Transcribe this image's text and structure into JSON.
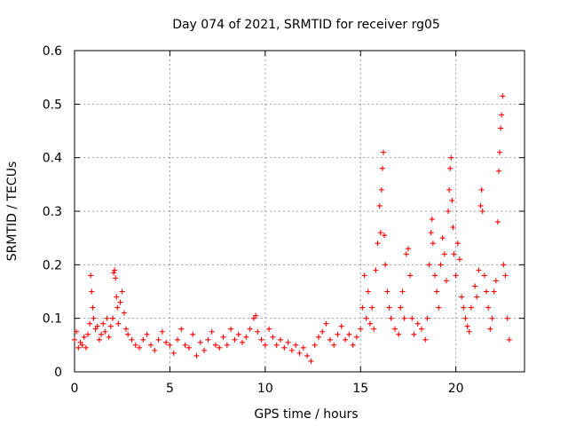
{
  "chart_data": {
    "type": "scatter",
    "title": "Day 074 of 2021, SRMTID for receiver rg05",
    "xlabel": "GPS time / hours",
    "ylabel": "SRMTID / TECUs",
    "xlim": [
      0,
      23.6
    ],
    "ylim": [
      0,
      0.6
    ],
    "x_ticks": [
      0,
      5,
      10,
      15,
      20
    ],
    "x_tick_labels": [
      "0",
      "5",
      "10",
      "15",
      "20"
    ],
    "y_ticks": [
      0,
      0.1,
      0.2,
      0.3,
      0.4,
      0.5,
      0.6
    ],
    "y_tick_labels": [
      "0",
      "0.1",
      "0.2",
      "0.3",
      "0.4",
      "0.5",
      "0.6"
    ],
    "grid": true,
    "marker": "+",
    "color": "#ff0000",
    "series": [
      {
        "name": "rg05",
        "points": [
          [
            0.0,
            0.06
          ],
          [
            0.1,
            0.075
          ],
          [
            0.2,
            0.045
          ],
          [
            0.3,
            0.055
          ],
          [
            0.4,
            0.05
          ],
          [
            0.5,
            0.065
          ],
          [
            0.6,
            0.045
          ],
          [
            0.7,
            0.07
          ],
          [
            0.8,
            0.09
          ],
          [
            0.85,
            0.18
          ],
          [
            0.9,
            0.15
          ],
          [
            0.95,
            0.12
          ],
          [
            1.0,
            0.1
          ],
          [
            1.1,
            0.08
          ],
          [
            1.2,
            0.085
          ],
          [
            1.3,
            0.06
          ],
          [
            1.4,
            0.07
          ],
          [
            1.5,
            0.09
          ],
          [
            1.6,
            0.075
          ],
          [
            1.7,
            0.1
          ],
          [
            1.8,
            0.065
          ],
          [
            1.9,
            0.085
          ],
          [
            2.0,
            0.1
          ],
          [
            2.05,
            0.185
          ],
          [
            2.1,
            0.19
          ],
          [
            2.15,
            0.175
          ],
          [
            2.2,
            0.14
          ],
          [
            2.25,
            0.12
          ],
          [
            2.3,
            0.09
          ],
          [
            2.4,
            0.13
          ],
          [
            2.5,
            0.15
          ],
          [
            2.6,
            0.11
          ],
          [
            2.7,
            0.08
          ],
          [
            2.8,
            0.07
          ],
          [
            3.0,
            0.06
          ],
          [
            3.2,
            0.05
          ],
          [
            3.4,
            0.045
          ],
          [
            3.6,
            0.06
          ],
          [
            3.8,
            0.07
          ],
          [
            4.0,
            0.05
          ],
          [
            4.2,
            0.04
          ],
          [
            4.4,
            0.06
          ],
          [
            4.6,
            0.075
          ],
          [
            4.8,
            0.055
          ],
          [
            5.0,
            0.05
          ],
          [
            5.2,
            0.035
          ],
          [
            5.4,
            0.06
          ],
          [
            5.6,
            0.08
          ],
          [
            5.8,
            0.05
          ],
          [
            6.0,
            0.045
          ],
          [
            6.2,
            0.07
          ],
          [
            6.4,
            0.03
          ],
          [
            6.6,
            0.055
          ],
          [
            6.8,
            0.04
          ],
          [
            7.0,
            0.06
          ],
          [
            7.2,
            0.075
          ],
          [
            7.4,
            0.05
          ],
          [
            7.6,
            0.045
          ],
          [
            7.8,
            0.065
          ],
          [
            8.0,
            0.05
          ],
          [
            8.2,
            0.08
          ],
          [
            8.4,
            0.06
          ],
          [
            8.6,
            0.07
          ],
          [
            8.8,
            0.055
          ],
          [
            9.0,
            0.065
          ],
          [
            9.2,
            0.08
          ],
          [
            9.4,
            0.1
          ],
          [
            9.5,
            0.105
          ],
          [
            9.6,
            0.075
          ],
          [
            9.8,
            0.06
          ],
          [
            10.0,
            0.05
          ],
          [
            10.2,
            0.08
          ],
          [
            10.4,
            0.065
          ],
          [
            10.6,
            0.05
          ],
          [
            10.8,
            0.06
          ],
          [
            11.0,
            0.045
          ],
          [
            11.2,
            0.055
          ],
          [
            11.4,
            0.04
          ],
          [
            11.6,
            0.05
          ],
          [
            11.8,
            0.035
          ],
          [
            12.0,
            0.045
          ],
          [
            12.2,
            0.03
          ],
          [
            12.4,
            0.02
          ],
          [
            12.6,
            0.05
          ],
          [
            12.8,
            0.065
          ],
          [
            13.0,
            0.075
          ],
          [
            13.2,
            0.09
          ],
          [
            13.4,
            0.06
          ],
          [
            13.6,
            0.05
          ],
          [
            13.8,
            0.07
          ],
          [
            14.0,
            0.085
          ],
          [
            14.2,
            0.06
          ],
          [
            14.4,
            0.07
          ],
          [
            14.6,
            0.05
          ],
          [
            14.8,
            0.065
          ],
          [
            15.0,
            0.08
          ],
          [
            15.1,
            0.12
          ],
          [
            15.2,
            0.18
          ],
          [
            15.3,
            0.1
          ],
          [
            15.4,
            0.15
          ],
          [
            15.5,
            0.09
          ],
          [
            15.6,
            0.12
          ],
          [
            15.7,
            0.08
          ],
          [
            15.8,
            0.19
          ],
          [
            15.9,
            0.24
          ],
          [
            16.0,
            0.31
          ],
          [
            16.05,
            0.26
          ],
          [
            16.1,
            0.34
          ],
          [
            16.15,
            0.38
          ],
          [
            16.2,
            0.41
          ],
          [
            16.25,
            0.255
          ],
          [
            16.3,
            0.2
          ],
          [
            16.4,
            0.15
          ],
          [
            16.5,
            0.12
          ],
          [
            16.6,
            0.1
          ],
          [
            16.8,
            0.08
          ],
          [
            17.0,
            0.07
          ],
          [
            17.1,
            0.12
          ],
          [
            17.2,
            0.15
          ],
          [
            17.3,
            0.1
          ],
          [
            17.4,
            0.22
          ],
          [
            17.5,
            0.23
          ],
          [
            17.6,
            0.18
          ],
          [
            17.7,
            0.1
          ],
          [
            17.8,
            0.07
          ],
          [
            18.0,
            0.09
          ],
          [
            18.2,
            0.08
          ],
          [
            18.4,
            0.06
          ],
          [
            18.5,
            0.1
          ],
          [
            18.6,
            0.2
          ],
          [
            18.7,
            0.26
          ],
          [
            18.75,
            0.285
          ],
          [
            18.8,
            0.24
          ],
          [
            18.9,
            0.18
          ],
          [
            19.0,
            0.15
          ],
          [
            19.1,
            0.12
          ],
          [
            19.2,
            0.2
          ],
          [
            19.3,
            0.25
          ],
          [
            19.4,
            0.22
          ],
          [
            19.5,
            0.17
          ],
          [
            19.6,
            0.3
          ],
          [
            19.65,
            0.34
          ],
          [
            19.7,
            0.38
          ],
          [
            19.75,
            0.4
          ],
          [
            19.8,
            0.32
          ],
          [
            19.85,
            0.27
          ],
          [
            19.9,
            0.22
          ],
          [
            20.0,
            0.18
          ],
          [
            20.1,
            0.24
          ],
          [
            20.2,
            0.21
          ],
          [
            20.3,
            0.14
          ],
          [
            20.4,
            0.12
          ],
          [
            20.5,
            0.1
          ],
          [
            20.6,
            0.085
          ],
          [
            20.7,
            0.075
          ],
          [
            20.8,
            0.12
          ],
          [
            21.0,
            0.16
          ],
          [
            21.1,
            0.14
          ],
          [
            21.2,
            0.19
          ],
          [
            21.3,
            0.31
          ],
          [
            21.35,
            0.34
          ],
          [
            21.4,
            0.3
          ],
          [
            21.5,
            0.18
          ],
          [
            21.6,
            0.15
          ],
          [
            21.7,
            0.12
          ],
          [
            21.8,
            0.08
          ],
          [
            21.9,
            0.1
          ],
          [
            22.0,
            0.15
          ],
          [
            22.1,
            0.17
          ],
          [
            22.2,
            0.28
          ],
          [
            22.25,
            0.375
          ],
          [
            22.3,
            0.41
          ],
          [
            22.35,
            0.455
          ],
          [
            22.4,
            0.48
          ],
          [
            22.45,
            0.515
          ],
          [
            22.5,
            0.2
          ],
          [
            22.6,
            0.18
          ],
          [
            22.7,
            0.1
          ],
          [
            22.8,
            0.06
          ]
        ]
      }
    ]
  }
}
